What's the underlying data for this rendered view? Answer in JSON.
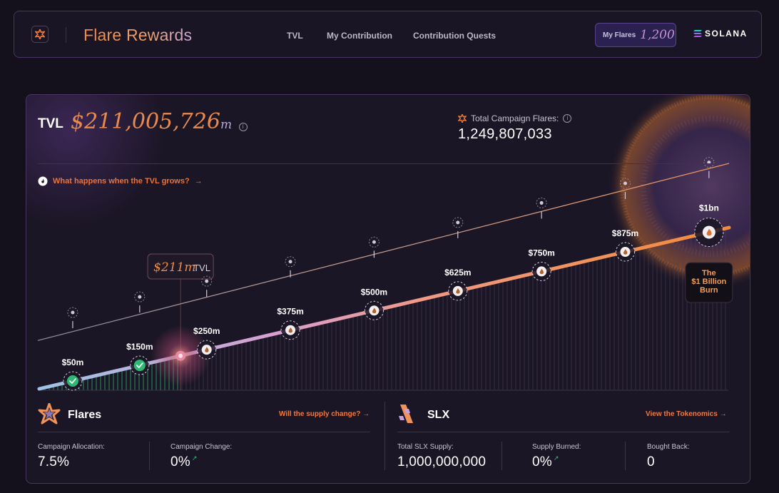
{
  "nav": {
    "brand": "Flare Rewards",
    "links": [
      "TVL",
      "My Contribution",
      "Contribution Quests"
    ],
    "my_flares_label": "My Flares",
    "my_flares_value": "1,200",
    "network": "SOLANA"
  },
  "tvl": {
    "label": "TVL",
    "value": "$211,005,726",
    "unit": "m",
    "total_flares_label": "Total Campaign Flares:",
    "total_flares_value": "1,249,807,033",
    "grow_link": "What happens when the TVL grows?"
  },
  "chart_data": {
    "type": "line",
    "current_marker": {
      "value": 211,
      "label": "$211m",
      "suffix": "TVL"
    },
    "milestones": [
      {
        "value": 50,
        "label": "$50m",
        "reached": true
      },
      {
        "value": 150,
        "label": "$150m",
        "reached": true
      },
      {
        "value": 250,
        "label": "$250m",
        "reached": false
      },
      {
        "value": 375,
        "label": "$375m",
        "reached": false
      },
      {
        "value": 500,
        "label": "$500m",
        "reached": false
      },
      {
        "value": 625,
        "label": "$625m",
        "reached": false
      },
      {
        "value": 750,
        "label": "$750m",
        "reached": false
      },
      {
        "value": 875,
        "label": "$875m",
        "reached": false
      },
      {
        "value": 1000,
        "label": "$1bn",
        "reached": false
      }
    ],
    "final_badge": [
      "The",
      "$1 Billion",
      "Burn"
    ],
    "colors": {
      "accent": "#f28a3a",
      "reached": "#2fb872",
      "line_start": "#9fc2e6",
      "line_mid": "#d89ac8"
    }
  },
  "flares_section": {
    "title": "Flares",
    "link": "Will the supply change?",
    "stats": [
      {
        "label": "Campaign Allocation:",
        "value": "7.5%"
      },
      {
        "label": "Campaign Change:",
        "value": "0%",
        "trend": "↗"
      }
    ]
  },
  "slx_section": {
    "title": "SLX",
    "link": "View the Tokenomics",
    "stats": [
      {
        "label": "Total SLX Supply:",
        "value": "1,000,000,000"
      },
      {
        "label": "Supply Burned:",
        "value": "0%",
        "trend": "↗"
      },
      {
        "label": "Bought Back:",
        "value": "0"
      }
    ]
  }
}
